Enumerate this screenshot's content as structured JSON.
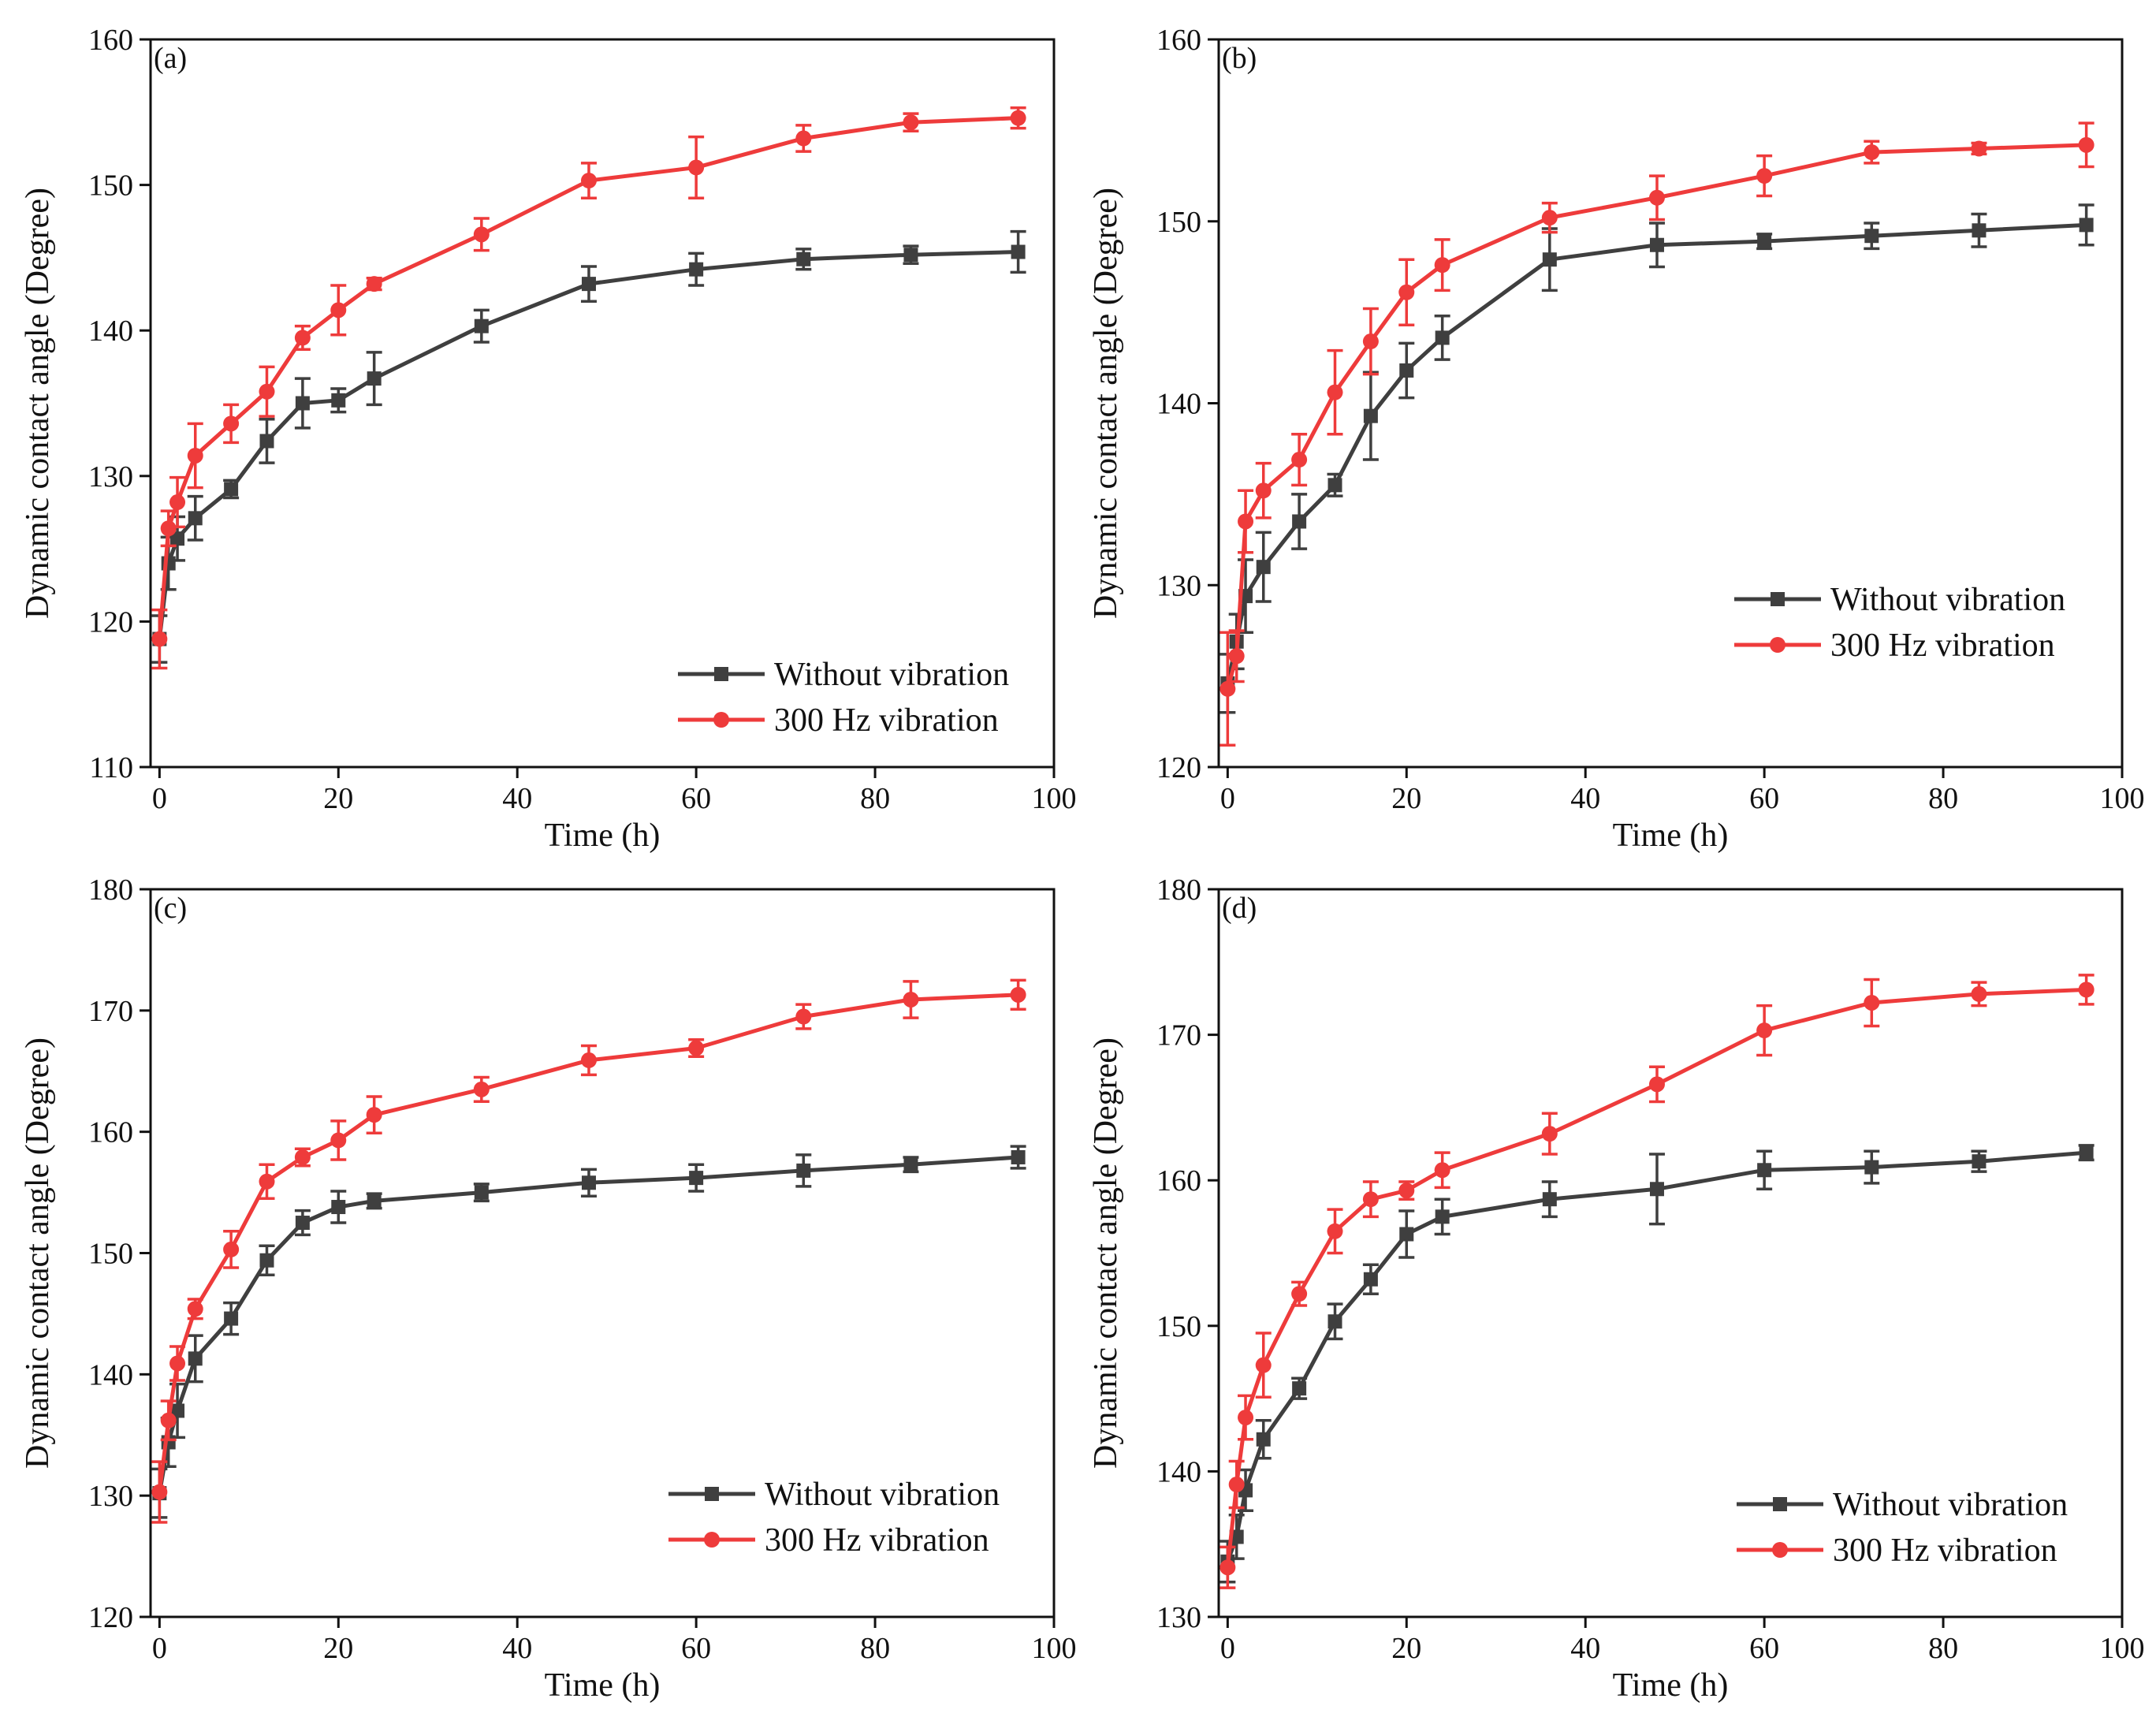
{
  "colors": {
    "without": "#3f3f3f",
    "vibration": "#ee3b3b",
    "axis": "#111111"
  },
  "legend": [
    "Without vibration",
    "300 Hz vibration"
  ],
  "chart_data": [
    {
      "type": "line",
      "panel": "(a)",
      "xlabel": "Time (h)",
      "ylabel": "Dynamic contact angle (Degree)",
      "xlim": [
        -1,
        100
      ],
      "ylim": [
        110,
        160
      ],
      "xticks": [
        0,
        20,
        40,
        60,
        80,
        100
      ],
      "yticks": [
        110,
        120,
        130,
        140,
        150,
        160
      ],
      "legend_position": "bottom-right",
      "x": [
        0,
        1,
        2,
        4,
        8,
        12,
        16,
        20,
        24,
        36,
        48,
        60,
        72,
        84,
        96
      ],
      "series": [
        {
          "name": "Without vibration",
          "marker": "square",
          "values": [
            118.8,
            124.0,
            125.7,
            127.1,
            129.1,
            132.4,
            135.0,
            135.2,
            136.7,
            140.3,
            143.2,
            144.2,
            144.9,
            145.2,
            145.4
          ],
          "errors": [
            1.6,
            1.8,
            1.5,
            1.5,
            0.6,
            1.5,
            1.7,
            0.8,
            1.8,
            1.1,
            1.2,
            1.1,
            0.7,
            0.6,
            1.4
          ]
        },
        {
          "name": "300 Hz vibration",
          "marker": "circle",
          "values": [
            118.8,
            126.4,
            128.2,
            131.4,
            133.6,
            135.8,
            139.5,
            141.4,
            143.2,
            146.6,
            150.3,
            151.2,
            153.2,
            154.3,
            154.6
          ],
          "errors": [
            2.0,
            1.2,
            1.7,
            2.2,
            1.3,
            1.7,
            0.8,
            1.7,
            0.4,
            1.1,
            1.2,
            2.1,
            0.9,
            0.6,
            0.7
          ]
        }
      ]
    },
    {
      "type": "line",
      "panel": "(b)",
      "xlabel": "Time (h)",
      "ylabel": "Dynamic contact angle (Degree)",
      "xlim": [
        -1,
        100
      ],
      "ylim": [
        120,
        160
      ],
      "xticks": [
        0,
        20,
        40,
        60,
        80,
        100
      ],
      "yticks": [
        120,
        130,
        140,
        150,
        160
      ],
      "legend_position": "right",
      "x": [
        0,
        1,
        2,
        4,
        8,
        12,
        16,
        20,
        24,
        36,
        48,
        60,
        72,
        84,
        96
      ],
      "series": [
        {
          "name": "Without vibration",
          "marker": "square",
          "values": [
            124.6,
            126.9,
            129.4,
            131.0,
            133.5,
            135.5,
            139.3,
            141.8,
            143.6,
            147.9,
            148.7,
            148.9,
            149.2,
            149.5,
            149.8
          ],
          "errors": [
            1.6,
            1.5,
            2.0,
            1.9,
            1.5,
            0.6,
            2.4,
            1.5,
            1.2,
            1.7,
            1.2,
            0.4,
            0.7,
            0.9,
            1.1
          ]
        },
        {
          "name": "300 Hz vibration",
          "marker": "circle",
          "values": [
            124.3,
            126.1,
            133.5,
            135.2,
            136.9,
            140.6,
            143.4,
            146.1,
            147.6,
            150.2,
            151.3,
            152.5,
            153.8,
            154.0,
            154.2
          ],
          "errors": [
            3.1,
            1.4,
            1.7,
            1.5,
            1.4,
            2.3,
            1.8,
            1.8,
            1.4,
            0.8,
            1.2,
            1.1,
            0.6,
            0.3,
            1.2
          ]
        }
      ]
    },
    {
      "type": "line",
      "panel": "(c)",
      "xlabel": "Time (h)",
      "ylabel": "Dynamic contact angle (Degree)",
      "xlim": [
        -1,
        100
      ],
      "ylim": [
        120,
        180
      ],
      "xticks": [
        0,
        20,
        40,
        60,
        80,
        100
      ],
      "yticks": [
        120,
        130,
        140,
        150,
        160,
        170,
        180
      ],
      "legend_position": "bottom-right",
      "x": [
        0,
        1,
        2,
        4,
        8,
        12,
        16,
        20,
        24,
        36,
        48,
        60,
        72,
        84,
        96
      ],
      "series": [
        {
          "name": "Without vibration",
          "marker": "square",
          "values": [
            130.2,
            134.4,
            137.0,
            141.3,
            144.6,
            149.4,
            152.5,
            153.8,
            154.3,
            155.0,
            155.8,
            156.2,
            156.8,
            157.3,
            157.9
          ],
          "errors": [
            2.0,
            2.0,
            2.2,
            1.9,
            1.3,
            1.2,
            1.0,
            1.3,
            0.6,
            0.7,
            1.1,
            1.1,
            1.3,
            0.6,
            0.9
          ]
        },
        {
          "name": "300 Hz vibration",
          "marker": "circle",
          "values": [
            130.3,
            136.2,
            140.9,
            145.4,
            150.3,
            155.9,
            157.9,
            159.3,
            161.4,
            163.5,
            165.9,
            166.9,
            169.5,
            170.9,
            171.3
          ],
          "errors": [
            2.5,
            1.6,
            1.4,
            0.8,
            1.5,
            1.4,
            0.7,
            1.6,
            1.5,
            1.0,
            1.2,
            0.7,
            1.0,
            1.5,
            1.2
          ]
        }
      ]
    },
    {
      "type": "line",
      "panel": "(d)",
      "xlabel": "Time (h)",
      "ylabel": "Dynamic contact angle (Degree)",
      "xlim": [
        -1,
        100
      ],
      "ylim": [
        130,
        180
      ],
      "xticks": [
        0,
        20,
        40,
        60,
        80,
        100
      ],
      "yticks": [
        130,
        140,
        150,
        160,
        170,
        180
      ],
      "legend_position": "bottom-right",
      "x": [
        0,
        1,
        2,
        4,
        8,
        12,
        16,
        20,
        24,
        36,
        48,
        60,
        72,
        84,
        96
      ],
      "series": [
        {
          "name": "Without vibration",
          "marker": "square",
          "values": [
            133.8,
            135.5,
            138.7,
            142.2,
            145.7,
            150.3,
            153.2,
            156.3,
            157.5,
            158.7,
            159.4,
            160.7,
            160.9,
            161.3,
            161.9
          ],
          "errors": [
            1.4,
            1.5,
            1.4,
            1.3,
            0.7,
            1.2,
            1.0,
            1.6,
            1.2,
            1.2,
            2.4,
            1.3,
            1.1,
            0.7,
            0.5
          ]
        },
        {
          "name": "300 Hz vibration",
          "marker": "circle",
          "values": [
            133.4,
            139.1,
            143.7,
            147.3,
            152.2,
            156.5,
            158.7,
            159.3,
            160.7,
            163.2,
            166.6,
            170.3,
            172.2,
            172.8,
            173.1
          ],
          "errors": [
            1.4,
            1.6,
            1.5,
            2.2,
            0.8,
            1.5,
            1.2,
            0.6,
            1.2,
            1.4,
            1.2,
            1.7,
            1.6,
            0.8,
            1.0
          ]
        }
      ]
    }
  ]
}
